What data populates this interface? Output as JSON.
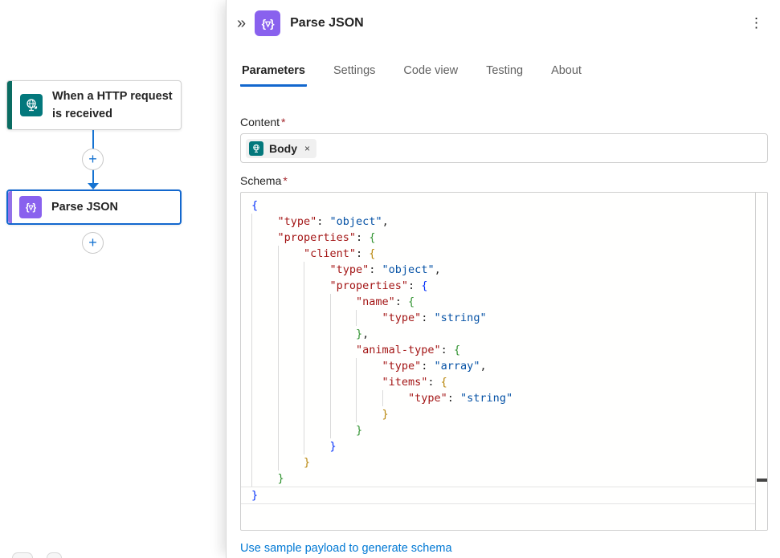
{
  "canvas": {
    "trigger_card": {
      "title": "When a HTTP request is received"
    },
    "action_card": {
      "title": "Parse JSON"
    },
    "add_step_label": "+"
  },
  "panel": {
    "collapse_icon": "»",
    "icon_glyph": "{▿}",
    "title": "Parse JSON",
    "menu_icon": "⋮",
    "tabs": [
      {
        "label": "Parameters",
        "active": true
      },
      {
        "label": "Settings",
        "active": false
      },
      {
        "label": "Code view",
        "active": false
      },
      {
        "label": "Testing",
        "active": false
      },
      {
        "label": "About",
        "active": false
      }
    ],
    "content_field": {
      "label": "Content",
      "required_mark": "*",
      "token": {
        "label": "Body",
        "remove_icon": "×"
      }
    },
    "schema_field": {
      "label": "Schema",
      "required_mark": "*"
    },
    "sample_link": "Use sample payload to generate schema"
  },
  "colors": {
    "accent_blue": "#1267ce",
    "link_blue": "#0078d4",
    "trigger_teal": "#03787c",
    "trigger_stripe": "#0a6c62",
    "parse_json_purple": "#8961ee",
    "required_red": "#a4262c",
    "code_key": "#a31515",
    "code_string": "#0451a5",
    "bracket_level1": "#0431fa",
    "bracket_level2": "#319331",
    "bracket_level3": "#b8860b"
  },
  "schema_code": {
    "lines": [
      {
        "i": 0,
        "t": [
          [
            "b1",
            "{"
          ]
        ]
      },
      {
        "i": 1,
        "t": [
          [
            "k",
            "\"type\""
          ],
          [
            "p",
            ": "
          ],
          [
            "s",
            "\"object\""
          ],
          [
            "p",
            ","
          ]
        ]
      },
      {
        "i": 1,
        "t": [
          [
            "k",
            "\"properties\""
          ],
          [
            "p",
            ": "
          ],
          [
            "b2",
            "{"
          ]
        ]
      },
      {
        "i": 2,
        "t": [
          [
            "k",
            "\"client\""
          ],
          [
            "p",
            ": "
          ],
          [
            "b3",
            "{"
          ]
        ]
      },
      {
        "i": 3,
        "t": [
          [
            "k",
            "\"type\""
          ],
          [
            "p",
            ": "
          ],
          [
            "s",
            "\"object\""
          ],
          [
            "p",
            ","
          ]
        ]
      },
      {
        "i": 3,
        "t": [
          [
            "k",
            "\"properties\""
          ],
          [
            "p",
            ": "
          ],
          [
            "b1",
            "{"
          ]
        ]
      },
      {
        "i": 4,
        "t": [
          [
            "k",
            "\"name\""
          ],
          [
            "p",
            ": "
          ],
          [
            "b2",
            "{"
          ]
        ]
      },
      {
        "i": 5,
        "t": [
          [
            "k",
            "\"type\""
          ],
          [
            "p",
            ": "
          ],
          [
            "s",
            "\"string\""
          ]
        ]
      },
      {
        "i": 4,
        "t": [
          [
            "b2",
            "}"
          ],
          [
            "p",
            ","
          ]
        ]
      },
      {
        "i": 4,
        "t": [
          [
            "k",
            "\"animal-type\""
          ],
          [
            "p",
            ": "
          ],
          [
            "b2",
            "{"
          ]
        ]
      },
      {
        "i": 5,
        "t": [
          [
            "k",
            "\"type\""
          ],
          [
            "p",
            ": "
          ],
          [
            "s",
            "\"array\""
          ],
          [
            "p",
            ","
          ]
        ]
      },
      {
        "i": 5,
        "t": [
          [
            "k",
            "\"items\""
          ],
          [
            "p",
            ": "
          ],
          [
            "b3",
            "{"
          ]
        ]
      },
      {
        "i": 6,
        "t": [
          [
            "k",
            "\"type\""
          ],
          [
            "p",
            ": "
          ],
          [
            "s",
            "\"string\""
          ]
        ]
      },
      {
        "i": 5,
        "t": [
          [
            "b3",
            "}"
          ]
        ]
      },
      {
        "i": 4,
        "t": [
          [
            "b2",
            "}"
          ]
        ]
      },
      {
        "i": 3,
        "t": [
          [
            "b1",
            "}"
          ]
        ]
      },
      {
        "i": 2,
        "t": [
          [
            "b3",
            "}"
          ]
        ]
      },
      {
        "i": 1,
        "t": [
          [
            "b2",
            "}"
          ]
        ]
      },
      {
        "i": 0,
        "t": [
          [
            "b1",
            "}"
          ]
        ],
        "cur": true
      }
    ]
  }
}
